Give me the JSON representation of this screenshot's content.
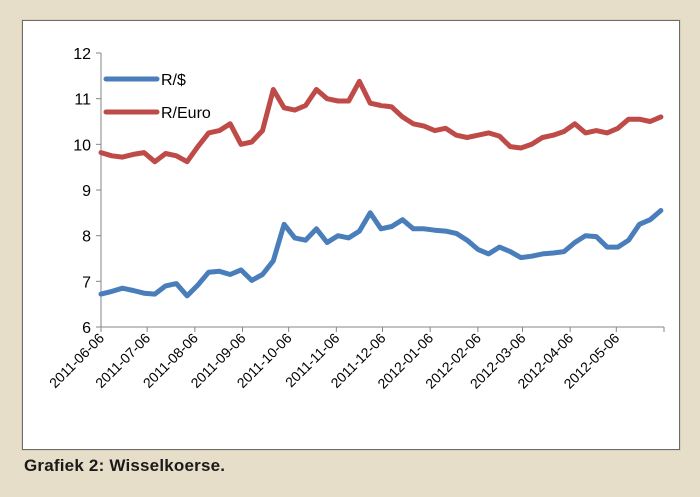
{
  "caption": "Grafiek 2: Wisselkoerse.",
  "chart_data": {
    "type": "line",
    "title": "",
    "xlabel": "",
    "ylabel": "",
    "ylim": [
      6,
      12
    ],
    "yticks": [
      6,
      7,
      8,
      9,
      10,
      11,
      12
    ],
    "xlim": [
      "2011-06-06",
      "2012-06-06"
    ],
    "x_tick_labels": [
      "2011-06-06",
      "2011-07-06",
      "2011-08-06",
      "2011-09-06",
      "2011-10-06",
      "2011-11-06",
      "2011-12-06",
      "2012-01-06",
      "2012-02-06",
      "2012-03-06",
      "2012-04-06",
      "2012-05-06"
    ],
    "grid": "none",
    "legend_position": "top-left",
    "x": [
      "2011-06-06",
      "2011-06-13",
      "2011-06-20",
      "2011-06-27",
      "2011-07-04",
      "2011-07-11",
      "2011-07-18",
      "2011-07-25",
      "2011-08-01",
      "2011-08-08",
      "2011-08-15",
      "2011-08-22",
      "2011-08-29",
      "2011-09-05",
      "2011-09-12",
      "2011-09-19",
      "2011-09-26",
      "2011-10-03",
      "2011-10-10",
      "2011-10-17",
      "2011-10-24",
      "2011-10-31",
      "2011-11-07",
      "2011-11-14",
      "2011-11-21",
      "2011-11-28",
      "2011-12-05",
      "2011-12-12",
      "2011-12-19",
      "2011-12-26",
      "2012-01-02",
      "2012-01-09",
      "2012-01-16",
      "2012-01-23",
      "2012-01-30",
      "2012-02-06",
      "2012-02-13",
      "2012-02-20",
      "2012-02-27",
      "2012-03-05",
      "2012-03-12",
      "2012-03-19",
      "2012-03-26",
      "2012-04-02",
      "2012-04-09",
      "2012-04-16",
      "2012-04-23",
      "2012-04-30",
      "2012-05-07",
      "2012-05-14",
      "2012-05-21",
      "2012-05-28",
      "2012-06-04"
    ],
    "series": [
      {
        "name": "R/$",
        "color": "#4a7ebb",
        "values": [
          6.72,
          6.78,
          6.85,
          6.8,
          6.74,
          6.72,
          6.9,
          6.95,
          6.68,
          6.92,
          7.2,
          7.22,
          7.15,
          7.25,
          7.02,
          7.15,
          7.45,
          8.25,
          7.95,
          7.9,
          8.15,
          7.85,
          8.0,
          7.95,
          8.1,
          8.5,
          8.15,
          8.2,
          8.35,
          8.15,
          8.15,
          8.12,
          8.1,
          8.05,
          7.9,
          7.7,
          7.6,
          7.75,
          7.65,
          7.52,
          7.55,
          7.6,
          7.62,
          7.65,
          7.85,
          8.0,
          7.98,
          7.75,
          7.75,
          7.9,
          8.25,
          8.35,
          8.55
        ]
      },
      {
        "name": "R/Euro",
        "color": "#be4b48",
        "values": [
          9.82,
          9.75,
          9.72,
          9.78,
          9.82,
          9.62,
          9.8,
          9.75,
          9.62,
          9.95,
          10.25,
          10.3,
          10.45,
          10.0,
          10.05,
          10.3,
          11.2,
          10.8,
          10.75,
          10.85,
          11.2,
          11.0,
          10.95,
          10.95,
          11.38,
          10.9,
          10.85,
          10.82,
          10.6,
          10.45,
          10.4,
          10.3,
          10.35,
          10.2,
          10.15,
          10.2,
          10.25,
          10.18,
          9.95,
          9.92,
          10.0,
          10.15,
          10.2,
          10.28,
          10.45,
          10.25,
          10.3,
          10.25,
          10.35,
          10.55,
          10.55,
          10.5,
          10.6
        ]
      }
    ]
  }
}
